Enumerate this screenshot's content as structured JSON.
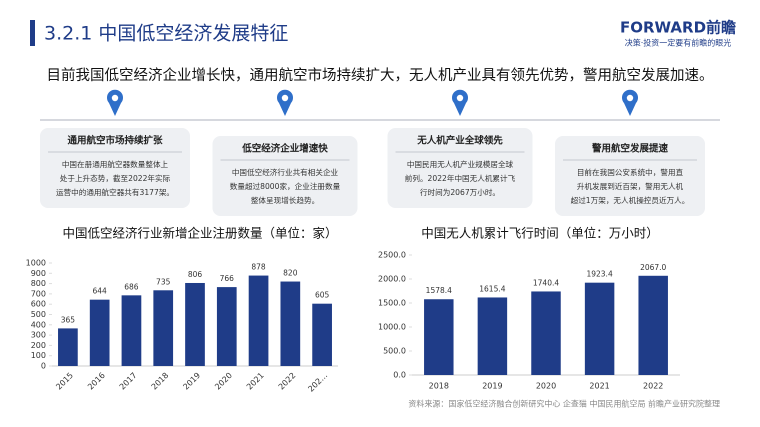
{
  "header": {
    "title": "3.2.1 中国低空经济发展特征",
    "logo": "FORWARD前瞻",
    "slogan": "决策·投资一定要有前瞻的眼光"
  },
  "summary": "目前我国低空经济企业增长快，通用航空市场持续扩大，无人机产业具有领先优势，警用航空发展加速。",
  "cards": [
    {
      "title": "通用航空市场持续扩张",
      "lines": [
        "中国在册通用航空器数量整体上",
        "处于上升态势，截至2022年实际",
        "运营中的通用航空器共有3177架。"
      ]
    },
    {
      "title": "低空经济企业增速快",
      "lines": [
        "中国低空经济行业共有相关企业",
        "数量超过8000家，企业注册数量",
        "整体呈现增长趋势。"
      ]
    },
    {
      "title": "无人机产业全球领先",
      "lines": [
        "中国民用无人机产业规模居全球",
        "前列。2022年中国无人机累计飞",
        "行时间为2067万小时。"
      ]
    },
    {
      "title": "警用航空发展提速",
      "lines": [
        "目前在我国公安系统中，警用直",
        "升机发展到近百架，警用无人机",
        "超过1万架，无人机操控员近万人。"
      ]
    }
  ],
  "chart_data": [
    {
      "type": "bar",
      "title": "中国低空经济行业新增企业注册数量（单位：家）",
      "color": "#1f3c88",
      "categories": [
        "2015",
        "2016",
        "2017",
        "2018",
        "2019",
        "2020",
        "2021",
        "2022",
        "202…"
      ],
      "values": [
        365,
        644,
        686,
        735,
        806,
        766,
        878,
        820,
        605
      ],
      "ylim": [
        0,
        1000
      ],
      "yticks": [
        0,
        100,
        200,
        300,
        400,
        500,
        600,
        700,
        800,
        900,
        1000
      ]
    },
    {
      "type": "bar",
      "title": "中国无人机累计飞行时间（单位：万小时）",
      "color": "#1f3c88",
      "categories": [
        "2018",
        "2019",
        "2020",
        "2021",
        "2022"
      ],
      "values": [
        1578.4,
        1615.4,
        1740.4,
        1923.4,
        2067.0
      ],
      "value_labels": [
        "1578.4",
        "1615.4",
        "1740.4",
        "1923.4",
        "2067.0"
      ],
      "ylim": [
        0,
        2500
      ],
      "yticks": [
        {
          "value": 0,
          "label": "0.0"
        },
        {
          "value": 500,
          "label": "500.0"
        },
        {
          "value": 1000,
          "label": "1000.0"
        },
        {
          "value": 1500,
          "label": "1500.0"
        },
        {
          "value": 2000,
          "label": "2000.0"
        },
        {
          "value": 2500,
          "label": "2500.0"
        }
      ]
    }
  ],
  "source": "资料来源：国家低空经济融合创新研究中心 企查猫 中国民用航空局 前瞻产业研究院整理"
}
